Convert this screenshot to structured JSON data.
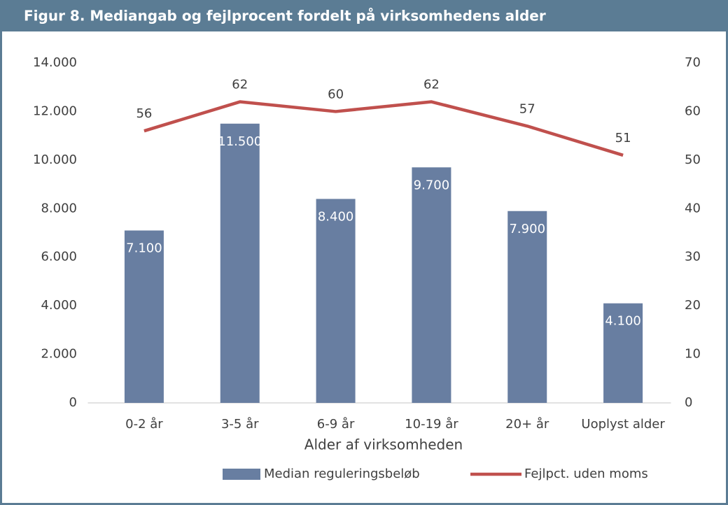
{
  "chart_data": {
    "type": "combo",
    "title": "Figur 8. Mediangab og fejlprocent fordelt på virksomhedens alder",
    "x_label": "Alder af virksomheden",
    "categories": [
      "0-2 år",
      "3-5 år",
      "6-9 år",
      "10-19 år",
      "20+ år",
      "Uoplyst alder"
    ],
    "series": [
      {
        "name": "Median reguleringsbeløb",
        "type": "bar",
        "axis": "y",
        "color": "#687ea1",
        "values": [
          7100,
          11500,
          8400,
          9700,
          7900,
          4100
        ],
        "value_labels": [
          "7.100",
          "11.500",
          "8.400",
          "9.700",
          "7.900",
          "4.100"
        ]
      },
      {
        "name": "Fejlpct. uden moms",
        "type": "line",
        "axis": "y2",
        "color": "#c0504d",
        "values": [
          56,
          62,
          60,
          62,
          57,
          51
        ]
      }
    ],
    "ylim": [
      0,
      14000
    ],
    "yticks": [
      0,
      {
        "value": 2000,
        "label": "2.000"
      },
      {
        "value": 4000,
        "label": "4.000"
      },
      {
        "value": 6000,
        "label": "6.000"
      },
      {
        "value": 8000,
        "label": "8.000"
      },
      {
        "value": 10000,
        "label": "10.000"
      },
      {
        "value": 12000,
        "label": "12.000"
      },
      {
        "value": 14000,
        "label": "14.000"
      }
    ],
    "y2lim": [
      0,
      70
    ],
    "y2ticks": [
      0,
      10,
      20,
      30,
      40,
      50,
      60,
      70
    ],
    "grid": false,
    "legend": "bottom"
  }
}
